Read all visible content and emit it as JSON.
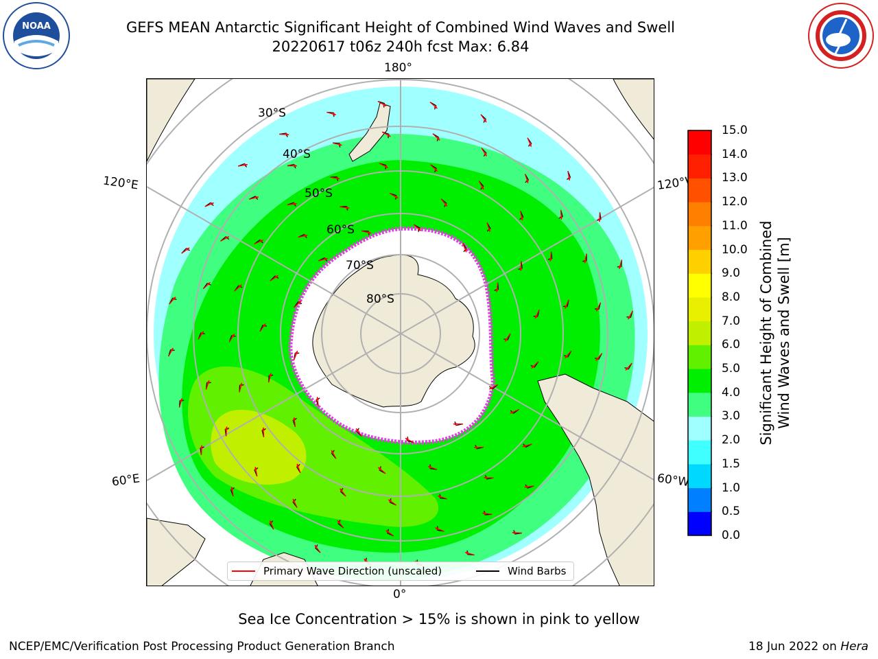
{
  "header": {
    "title_line1": "GEFS MEAN Antarctic Significant Height of Combined Wind Waves and Swell",
    "title_line2": "20220617 t06z 240h fcst   Max: 6.84"
  },
  "logos": {
    "left": {
      "text": "NOAA",
      "ring_text": "NATIONAL OCEANIC AND ATMOSPHERIC ADMINISTRATION · U.S. DEPARTMENT OF COMMERCE"
    },
    "right": {
      "ring_text": "NATIONAL WEATHER SERVICE"
    }
  },
  "map": {
    "projection": "south polar stereographic",
    "lon_labels": {
      "top": "180°",
      "bottom": "0°",
      "upper_left": "120°E",
      "upper_right": "120°W",
      "lower_left": "60°E",
      "lower_right": "60°W"
    },
    "lat_labels": [
      "30°S",
      "40°S",
      "50°S",
      "60°S",
      "70°S",
      "80°S"
    ],
    "colors": {
      "land": "#EFEBD8",
      "ice": "#FFFFFF",
      "ice_edge": "#E040E0",
      "grid": "#B0B0B0",
      "wave_arrow": "#FF0000",
      "wind_barb": "#000000"
    },
    "max_value": 6.84
  },
  "colorbar": {
    "title_line1": "Significant Height of Combined",
    "title_line2": "Wind Waves and Swell [m]",
    "ticks": [
      "0.0",
      "0.5",
      "1.0",
      "1.5",
      "2.0",
      "3.0",
      "4.0",
      "5.0",
      "6.0",
      "7.0",
      "8.0",
      "9.0",
      "10.0",
      "11.0",
      "12.0",
      "13.0",
      "14.0",
      "15.0"
    ],
    "colors": [
      "#0000FF",
      "#0080FF",
      "#00D8FF",
      "#40FFFF",
      "#A0FFFF",
      "#40FF80",
      "#00EE00",
      "#60F000",
      "#C0F000",
      "#E8F000",
      "#FFFF00",
      "#FFD000",
      "#FFA000",
      "#FF8000",
      "#FF5000",
      "#FF2000",
      "#FF0000"
    ]
  },
  "legend": {
    "primary_wave": "Primary Wave Direction (unscaled)",
    "wind_barbs": "Wind Barbs"
  },
  "caption": "Sea Ice Concentration > 15% is shown in pink to yellow",
  "footer": {
    "left": "NCEP/EMC/Verification Post Processing Product Generation Branch",
    "right_prefix": "18 Jun 2022 on ",
    "right_italic": "Hera"
  }
}
